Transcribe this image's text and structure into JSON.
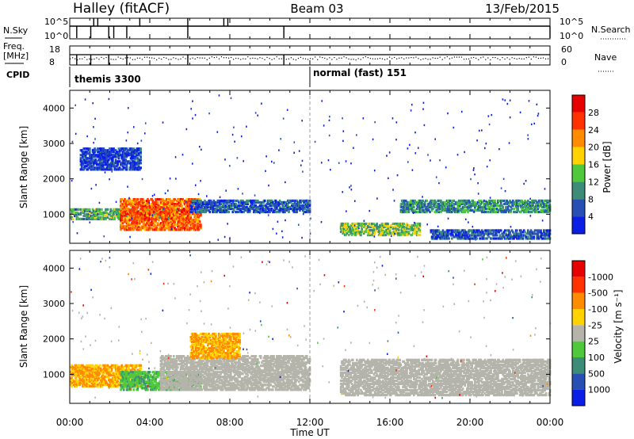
{
  "header": {
    "station": "Halley (fitACF)",
    "beam": "Beam 03",
    "date": "13/Feb/2015"
  },
  "nsky_panel": {
    "left_label": "N.Sky",
    "left_ticks": [
      "10^5",
      "10^0"
    ],
    "right_label": "N.Search",
    "right_ticks": [
      "10^5",
      "10^0"
    ]
  },
  "freq_panel": {
    "left_label_1": "Freq.",
    "left_label_2": "[MHz]",
    "left_ticks": [
      "18",
      "8"
    ],
    "right_label": "Nave",
    "right_ticks": [
      "60",
      "0"
    ]
  },
  "cpid": {
    "label": "CPID",
    "segments": [
      {
        "name": "themis 3300",
        "start_hour": 0,
        "end_hour": 12.0
      },
      {
        "name": "normal (fast) 151",
        "start_hour": 12.0,
        "end_hour": 24
      }
    ]
  },
  "chart_data": [
    {
      "type": "heatmap",
      "name": "power",
      "ylabel": "Slant Range [km]",
      "xlabel": "",
      "xlim": [
        0,
        24
      ],
      "ylim": [
        180,
        4500
      ],
      "y_ticks": [
        1000,
        2000,
        3000,
        4000
      ],
      "colorbar": {
        "label": "Power [dB]",
        "ticks": [
          "4",
          "8",
          "12",
          "16",
          "20",
          "24",
          "28"
        ],
        "colors": [
          "#0a1ee6",
          "#2850b4",
          "#3c8c78",
          "#50c83c",
          "#ffd200",
          "#ff8c00",
          "#ff3200",
          "#e60000"
        ]
      },
      "features": [
        {
          "desc": "band",
          "start_hour": 0.0,
          "end_hour": 6.0,
          "range_km": [
            900,
            1200
          ],
          "level": 12
        },
        {
          "desc": "enhanced",
          "start_hour": 2.5,
          "end_hour": 6.5,
          "range_km": [
            600,
            1500
          ],
          "level": 24
        },
        {
          "desc": "band",
          "start_hour": 6.0,
          "end_hour": 12.0,
          "range_km": [
            1100,
            1450
          ],
          "level": 6
        },
        {
          "desc": "band",
          "start_hour": 13.5,
          "end_hour": 17.5,
          "range_km": [
            450,
            800
          ],
          "level": 14
        },
        {
          "desc": "band",
          "start_hour": 16.5,
          "end_hour": 24.0,
          "range_km": [
            1100,
            1450
          ],
          "level": 10
        },
        {
          "desc": "band",
          "start_hour": 18.0,
          "end_hour": 24.0,
          "range_km": [
            350,
            600
          ],
          "level": 6
        },
        {
          "desc": "band",
          "start_hour": 0.5,
          "end_hour": 3.5,
          "range_km": [
            2300,
            2900
          ],
          "level": 4
        }
      ]
    },
    {
      "type": "heatmap",
      "name": "velocity",
      "ylabel": "Slant Range [km]",
      "xlabel": "Time UT",
      "xlim": [
        0,
        24
      ],
      "ylim": [
        180,
        4500
      ],
      "y_ticks": [
        1000,
        2000,
        3000,
        4000
      ],
      "x_ticks": [
        "00:00",
        "04:00",
        "08:00",
        "12:00",
        "16:00",
        "20:00",
        "00:00"
      ],
      "colorbar": {
        "label": "Velocity [m s⁻¹]",
        "ticks": [
          "1000",
          "500",
          "100",
          "25",
          "-25",
          "-100",
          "-500",
          "-1000"
        ],
        "colors": [
          "#0a1ee6",
          "#2850b4",
          "#3c8c78",
          "#50c83c",
          "#b4b4aa",
          "#ffd200",
          "#ff8c00",
          "#ff3200",
          "#e60000"
        ]
      },
      "ground_scatter_color": "#b4b4aa",
      "features": [
        {
          "desc": "toward",
          "start_hour": 0.0,
          "end_hour": 3.5,
          "range_km": [
            700,
            1300
          ],
          "velocity": -150
        },
        {
          "desc": "away",
          "start_hour": 2.5,
          "end_hour": 6.5,
          "range_km": [
            600,
            1100
          ],
          "velocity": 80
        },
        {
          "desc": "ground",
          "start_hour": 4.5,
          "end_hour": 12.0,
          "range_km": [
            600,
            1550
          ],
          "velocity": 0
        },
        {
          "desc": "ground",
          "start_hour": 13.5,
          "end_hour": 24.0,
          "range_km": [
            450,
            1450
          ],
          "velocity": 0
        },
        {
          "desc": "toward",
          "start_hour": 6.0,
          "end_hour": 8.5,
          "range_km": [
            1500,
            2200
          ],
          "velocity": -150
        }
      ]
    }
  ]
}
